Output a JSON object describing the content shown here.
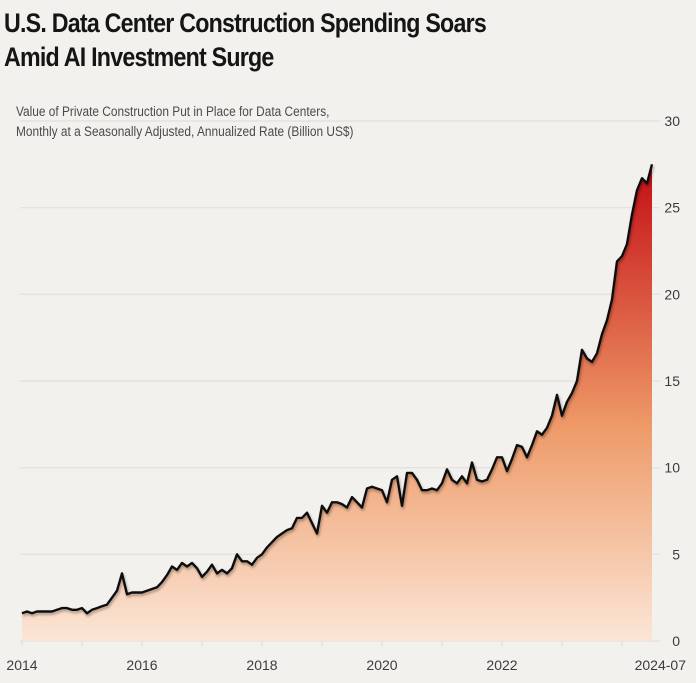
{
  "header": {
    "title_line1": "U.S. Data Center Construction Spending Soars",
    "title_line2": "Amid AI Investment Surge",
    "subtitle_line1": "Value of Private Construction Put in Place for Data Centers,",
    "subtitle_line2": "Monthly at a Seasonally Adjusted, Annualized Rate (Billion US$)"
  },
  "colors": {
    "background": "#f3f1ee",
    "line": "#111111",
    "fill_top": "#c40d14",
    "fill_mid": "#ee9a68",
    "fill_bottom": "#fbe6d6",
    "grid": "#e2dfdb"
  },
  "chart_data": {
    "type": "area",
    "title": "U.S. Data Center Construction Spending Soars Amid AI Investment Surge",
    "subtitle": "Value of Private Construction Put in Place for Data Centers, Monthly at a Seasonally Adjusted, Annualized Rate (Billion US$)",
    "xlabel": "",
    "ylabel": "Billion US$",
    "start": "2014-01",
    "end": "2024-07",
    "frequency": "monthly",
    "ylim": [
      0,
      30
    ],
    "yticks": [
      0,
      5,
      10,
      15,
      20,
      25,
      30
    ],
    "xticks": [
      "2014",
      "2016",
      "2018",
      "2020",
      "2022",
      "2024-07"
    ],
    "grid": true,
    "y_axis_side": "right",
    "legend": "none",
    "values": [
      1.6,
      1.7,
      1.6,
      1.7,
      1.7,
      1.7,
      1.7,
      1.8,
      1.9,
      1.9,
      1.8,
      1.8,
      1.9,
      1.6,
      1.8,
      1.9,
      2.0,
      2.1,
      2.5,
      2.9,
      3.9,
      2.7,
      2.8,
      2.8,
      2.8,
      2.9,
      3.0,
      3.1,
      3.4,
      3.8,
      4.3,
      4.1,
      4.5,
      4.3,
      4.5,
      4.2,
      3.7,
      4.0,
      4.4,
      3.9,
      4.1,
      3.9,
      4.2,
      5.0,
      4.6,
      4.6,
      4.4,
      4.8,
      5.0,
      5.4,
      5.7,
      6.0,
      6.2,
      6.4,
      6.5,
      7.1,
      7.1,
      7.4,
      6.8,
      6.2,
      7.8,
      7.4,
      8.0,
      8.0,
      7.9,
      7.7,
      8.3,
      8.0,
      7.7,
      8.8,
      8.9,
      8.8,
      8.7,
      8.0,
      9.3,
      9.5,
      7.8,
      9.7,
      9.7,
      9.3,
      8.7,
      8.7,
      8.8,
      8.7,
      9.1,
      9.9,
      9.3,
      9.1,
      9.5,
      9.1,
      10.3,
      9.3,
      9.2,
      9.3,
      9.9,
      10.6,
      10.6,
      9.8,
      10.5,
      11.3,
      11.2,
      10.6,
      11.3,
      12.1,
      11.9,
      12.3,
      13.0,
      14.2,
      13.0,
      13.8,
      14.3,
      15.0,
      16.8,
      16.3,
      16.1,
      16.6,
      17.7,
      18.5,
      19.7,
      21.9,
      22.2,
      22.9,
      24.6,
      26.0,
      26.7,
      26.4,
      27.5
    ]
  }
}
